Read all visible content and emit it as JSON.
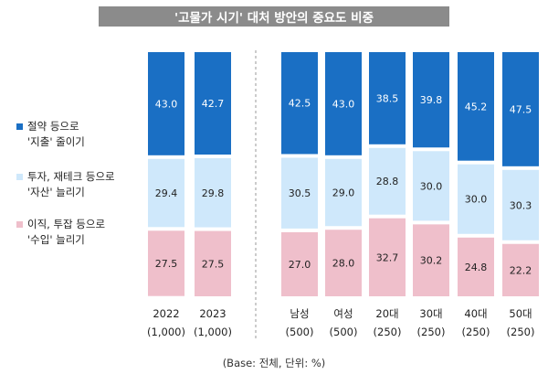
{
  "chart_data": {
    "type": "bar",
    "stacked": true,
    "orientation": "vertical",
    "title": "'고물가 시기' 대처 방안의 중요도 비중",
    "categories": [
      "2022",
      "2023",
      "남성",
      "여성",
      "20대",
      "30대",
      "40대",
      "50대"
    ],
    "category_bases": [
      "(1,000)",
      "(1,000)",
      "(500)",
      "(500)",
      "(250)",
      "(250)",
      "(250)",
      "(250)"
    ],
    "series": [
      {
        "name": "절약 등으로 '지출' 줄이기",
        "color": "#1a6fc4",
        "text_color": "#ffffff",
        "values": [
          43.0,
          42.7,
          42.5,
          43.0,
          38.5,
          39.8,
          45.2,
          47.5
        ]
      },
      {
        "name": "투자, 재테크 등으로 '자산' 늘리기",
        "color": "#cfe8fb",
        "text_color": "#222222",
        "values": [
          29.4,
          29.8,
          30.5,
          29.0,
          28.8,
          30.0,
          30.0,
          30.3
        ]
      },
      {
        "name": "이직, 투잡 등으로 '수입' 늘리기",
        "color": "#efbfcb",
        "text_color": "#222222",
        "values": [
          27.5,
          27.5,
          27.0,
          28.0,
          32.7,
          30.2,
          24.8,
          22.2
        ]
      }
    ],
    "ylim": [
      0,
      100
    ],
    "grid": false,
    "legend_position": "left"
  },
  "legend": [
    {
      "line1": "절약 등으로",
      "line2": "'지출' 줄이기",
      "color": "#1a6fc4"
    },
    {
      "line1": "투자, 재테크 등으로",
      "line2": "'자산' 늘리기",
      "color": "#cfe8fb"
    },
    {
      "line1": "이직, 투잡 등으로",
      "line2": "'수입' 늘리기",
      "color": "#efbfcb"
    }
  ],
  "footnote": "(Base: 전체, 단위: %)"
}
